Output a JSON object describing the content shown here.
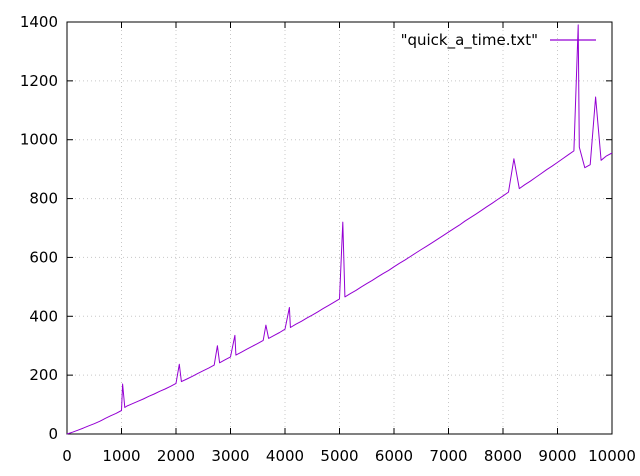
{
  "chart_data": {
    "type": "line",
    "legend": {
      "placement": "top-right",
      "entries": [
        "\"quick_a_time.txt\""
      ]
    },
    "grid": true,
    "xlim": [
      0,
      10000
    ],
    "ylim": [
      0,
      1400
    ],
    "x_ticks": [
      "0",
      "1000",
      "2000",
      "3000",
      "4000",
      "5000",
      "6000",
      "7000",
      "8000",
      "9000",
      "10000"
    ],
    "y_ticks": [
      "0",
      "200",
      "400",
      "600",
      "800",
      "1000",
      "1200",
      "1400"
    ],
    "colors": {
      "series": "#9400d3",
      "axes": "#000000",
      "grid": "#c8c8c8"
    },
    "series": [
      {
        "name": "\"quick_a_time.txt\"",
        "x": [
          0,
          100,
          200,
          300,
          400,
          500,
          600,
          650,
          700,
          800,
          900,
          1000,
          1020,
          1060,
          1100,
          1200,
          1300,
          1400,
          1500,
          1600,
          1700,
          1800,
          1900,
          2000,
          2060,
          2100,
          2200,
          2300,
          2400,
          2500,
          2600,
          2700,
          2760,
          2800,
          2900,
          3000,
          3080,
          3100,
          3200,
          3300,
          3400,
          3500,
          3600,
          3650,
          3700,
          3800,
          3900,
          4000,
          4080,
          4100,
          4200,
          4300,
          4400,
          4500,
          4600,
          4700,
          4800,
          4900,
          5000,
          5060,
          5100,
          5200,
          5300,
          5400,
          5500,
          5600,
          5700,
          5800,
          5900,
          6000,
          6100,
          6200,
          6300,
          6400,
          6500,
          6600,
          6700,
          6800,
          6900,
          7000,
          7100,
          7200,
          7300,
          7400,
          7500,
          7600,
          7700,
          7800,
          7900,
          8000,
          8100,
          8200,
          8300,
          8400,
          8500,
          8600,
          8700,
          8800,
          8900,
          9000,
          9100,
          9200,
          9300,
          9380,
          9400,
          9500,
          9600,
          9700,
          9800,
          9900,
          10000
        ],
        "y": [
          0,
          6,
          13,
          20,
          28,
          35,
          43,
          48,
          53,
          62,
          70,
          80,
          170,
          90,
          95,
          103,
          111,
          119,
          128,
          136,
          145,
          153,
          162,
          172,
          237,
          178,
          187,
          196,
          206,
          215,
          224,
          234,
          300,
          242,
          252,
          262,
          335,
          268,
          278,
          288,
          298,
          308,
          318,
          370,
          325,
          335,
          345,
          356,
          430,
          362,
          373,
          383,
          394,
          404,
          415,
          426,
          437,
          448,
          459,
          720,
          466,
          477,
          488,
          500,
          511,
          522,
          534,
          545,
          556,
          568,
          580,
          591,
          603,
          615,
          627,
          638,
          650,
          662,
          674,
          686,
          698,
          710,
          723,
          735,
          747,
          759,
          772,
          784,
          797,
          809,
          822,
          935,
          834,
          847,
          859,
          872,
          885,
          898,
          910,
          923,
          936,
          949,
          962,
          1390,
          975,
          905,
          915,
          1145,
          930,
          945,
          955
        ]
      }
    ]
  }
}
